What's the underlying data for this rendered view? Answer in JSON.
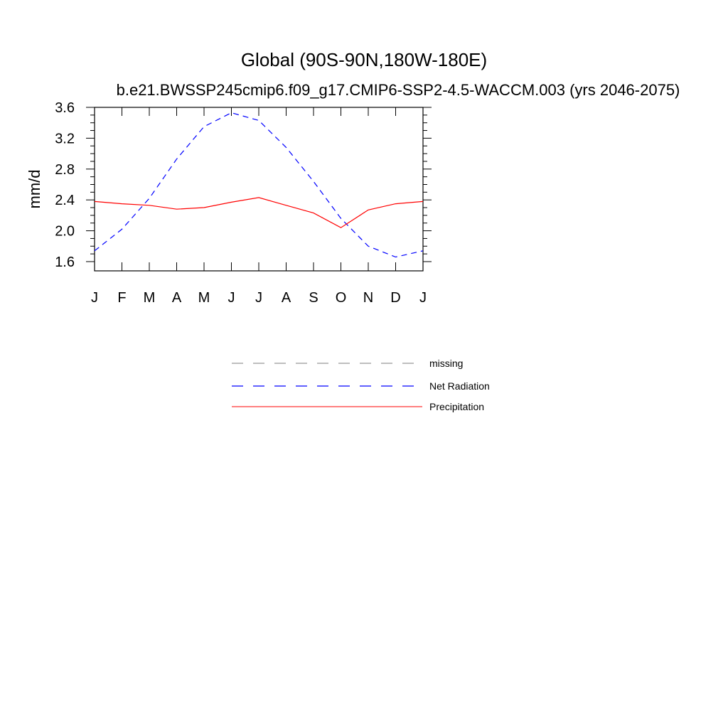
{
  "chart_data": {
    "type": "line",
    "title": "Global (90S-90N,180W-180E)",
    "subtitle": "b.e21.BWSSP245cmip6.f09_g17.CMIP6-SSP2-4.5-WACCM.003 (yrs 2046-2075)",
    "xlabel": "",
    "ylabel": "mm/d",
    "ylim": [
      1.48,
      3.6
    ],
    "yticks": [
      "1.6",
      "2.0",
      "2.4",
      "2.8",
      "3.2",
      "3.6"
    ],
    "ytick_values": [
      1.6,
      2.0,
      2.4,
      2.8,
      3.2,
      3.6
    ],
    "categories": [
      "J",
      "F",
      "M",
      "A",
      "M",
      "J",
      "J",
      "A",
      "S",
      "O",
      "N",
      "D",
      "J"
    ],
    "series": [
      {
        "name": "Net Radiation",
        "color": "#0000ff",
        "style": "dashed",
        "values": [
          1.74,
          2.02,
          2.42,
          2.93,
          3.35,
          3.53,
          3.43,
          3.08,
          2.64,
          2.16,
          1.8,
          1.66,
          1.74
        ]
      },
      {
        "name": "Precipitation",
        "color": "#ff0000",
        "style": "solid",
        "values": [
          2.38,
          2.35,
          2.33,
          2.28,
          2.3,
          2.37,
          2.43,
          2.33,
          2.23,
          2.04,
          2.27,
          2.35,
          2.38
        ]
      }
    ],
    "legend": {
      "placement": "bottom",
      "entries": [
        {
          "label": "missing",
          "color": "#999999",
          "style": "dashed"
        },
        {
          "label": "Net Radiation",
          "color": "#0000ff",
          "style": "dashed"
        },
        {
          "label": "Precipitation",
          "color": "#ff0000",
          "style": "solid"
        }
      ]
    },
    "grid": false
  }
}
